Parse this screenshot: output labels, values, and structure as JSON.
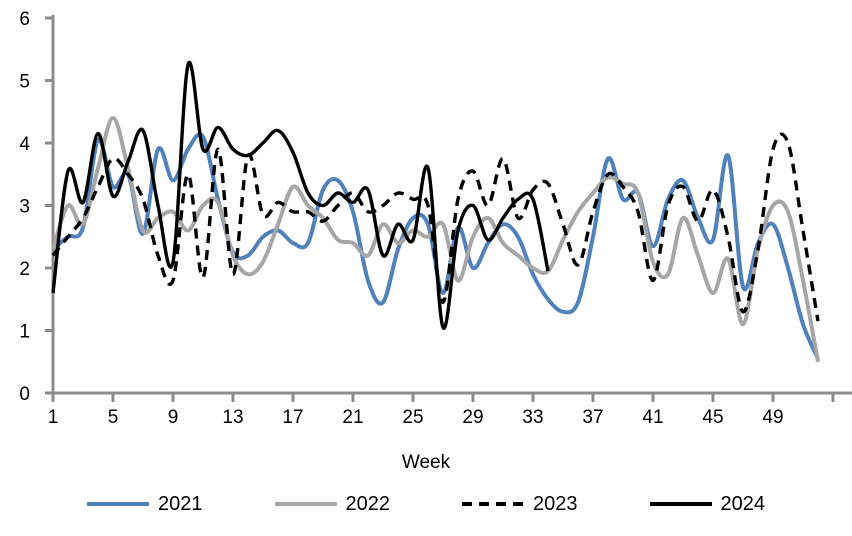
{
  "chart_data": {
    "type": "line",
    "title": "",
    "xlabel": "Week",
    "ylabel": "",
    "x_range": [
      1,
      52
    ],
    "ylim": [
      0,
      6
    ],
    "y_ticks": [
      0,
      1,
      2,
      3,
      4,
      5,
      6
    ],
    "x_ticks": [
      1,
      5,
      9,
      13,
      17,
      21,
      25,
      29,
      33,
      37,
      41,
      45,
      49
    ],
    "x_ticks_unlabeled": [
      53
    ],
    "grid": false,
    "legend_position": "bottom",
    "colors": {
      "axis": "#8C8C8C",
      "blue": "#4F81BD",
      "gray": "#A6A6A6",
      "black": "#000000"
    },
    "series": [
      {
        "name": "2021",
        "color": "#4F81BD",
        "style": "solid",
        "start_week": 1,
        "values": [
          2.3,
          2.5,
          2.65,
          4.05,
          3.3,
          3.5,
          2.55,
          3.9,
          3.4,
          3.9,
          4.1,
          3.1,
          2.25,
          2.2,
          2.5,
          2.6,
          2.4,
          2.4,
          3.25,
          3.4,
          2.9,
          1.8,
          1.45,
          2.3,
          2.8,
          2.7,
          1.6,
          2.65,
          2.0,
          2.4,
          2.7,
          2.5,
          1.9,
          1.5,
          1.3,
          1.45,
          2.5,
          3.75,
          3.1,
          3.2,
          2.35,
          3.1,
          3.4,
          2.8,
          2.45,
          3.8,
          1.7,
          2.4,
          2.7,
          2.0,
          1.1,
          0.55
        ]
      },
      {
        "name": "2022",
        "color": "#A6A6A6",
        "style": "solid",
        "start_week": 1,
        "values": [
          2.3,
          3.0,
          2.7,
          3.6,
          4.4,
          3.6,
          2.6,
          2.8,
          2.9,
          2.6,
          3.0,
          3.05,
          2.2,
          1.9,
          2.1,
          2.7,
          3.3,
          3.0,
          2.8,
          2.45,
          2.4,
          2.2,
          2.7,
          2.4,
          2.6,
          2.5,
          2.7,
          1.8,
          2.5,
          2.8,
          2.4,
          2.2,
          2.0,
          1.95,
          2.45,
          2.9,
          3.2,
          3.45,
          3.35,
          3.2,
          2.1,
          1.9,
          2.8,
          2.2,
          1.6,
          2.15,
          1.1,
          2.3,
          3.0,
          2.9,
          1.8,
          0.5
        ]
      },
      {
        "name": "2023",
        "color": "#000000",
        "style": "dashed",
        "start_week": 1,
        "values": [
          2.2,
          2.5,
          2.8,
          3.3,
          3.75,
          3.5,
          3.1,
          2.2,
          1.8,
          3.5,
          1.85,
          3.9,
          1.9,
          3.8,
          2.85,
          3.05,
          2.9,
          2.9,
          2.75,
          3.0,
          3.2,
          2.9,
          3.0,
          3.2,
          3.1,
          3.0,
          1.45,
          3.1,
          3.55,
          3.0,
          3.75,
          2.8,
          3.25,
          3.35,
          2.7,
          2.05,
          2.9,
          3.5,
          3.3,
          2.9,
          1.8,
          3.0,
          3.3,
          2.75,
          3.25,
          2.5,
          1.3,
          2.3,
          3.9,
          4.0,
          2.6,
          1.15
        ]
      },
      {
        "name": "2024",
        "color": "#000000",
        "style": "solid",
        "start_week": 1,
        "values": [
          1.6,
          3.55,
          3.05,
          4.15,
          3.15,
          3.7,
          4.2,
          3.0,
          2.1,
          5.25,
          3.9,
          4.25,
          3.9,
          3.8,
          4.0,
          4.2,
          3.85,
          3.2,
          3.0,
          3.2,
          3.05,
          3.25,
          2.2,
          2.7,
          2.45,
          3.6,
          1.05,
          2.6,
          3.0,
          2.45,
          2.8,
          3.1,
          3.1,
          1.95
        ]
      }
    ]
  }
}
